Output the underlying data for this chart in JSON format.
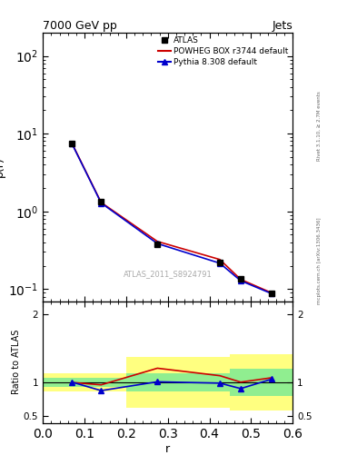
{
  "title": "7000 GeV pp",
  "title_right": "Jets",
  "ylabel_main": "ρ(r)",
  "ylabel_ratio": "Ratio to ATLAS",
  "xlabel": "r",
  "watermark": "ATLAS_2011_S8924791",
  "right_label_top": "Rivet 3.1.10, ≥ 2.7M events",
  "right_label_bottom": "mcplots.cern.ch [arXiv:1306.3436]",
  "atlas_x": [
    0.07,
    0.14,
    0.275,
    0.425,
    0.475,
    0.55
  ],
  "atlas_y": [
    7.5,
    1.35,
    0.38,
    0.22,
    0.135,
    0.089
  ],
  "powheg_x": [
    0.07,
    0.14,
    0.275,
    0.425,
    0.475,
    0.55
  ],
  "powheg_y": [
    7.5,
    1.3,
    0.41,
    0.24,
    0.133,
    0.089
  ],
  "pythia_x": [
    0.07,
    0.14,
    0.275,
    0.425,
    0.475,
    0.55
  ],
  "pythia_y": [
    7.4,
    1.28,
    0.385,
    0.215,
    0.128,
    0.087
  ],
  "ratio_x": [
    0.07,
    0.14,
    0.275,
    0.425,
    0.475,
    0.55
  ],
  "ratio_powheg": [
    1.0,
    0.965,
    1.21,
    1.1,
    1.005,
    1.07
  ],
  "ratio_pythia": [
    1.005,
    0.88,
    1.01,
    0.99,
    0.91,
    1.05
  ],
  "band_x_edges": [
    0.0,
    0.1,
    0.2,
    0.375,
    0.45,
    0.6
  ],
  "green_upper": [
    1.07,
    1.07,
    1.13,
    1.13,
    1.2,
    1.2
  ],
  "green_lower": [
    0.93,
    0.93,
    0.87,
    0.87,
    0.8,
    0.8
  ],
  "yellow_upper": [
    1.13,
    1.13,
    1.38,
    1.38,
    1.42,
    1.42
  ],
  "yellow_lower": [
    0.87,
    0.87,
    0.63,
    0.63,
    0.58,
    0.58
  ],
  "xlim": [
    0.0,
    0.6
  ],
  "ylim_main": [
    0.07,
    200
  ],
  "ylim_ratio": [
    0.4,
    2.2
  ],
  "ratio_yticks": [
    0.5,
    1.0,
    2.0
  ],
  "ratio_yticklabels": [
    "0.5",
    "1",
    "2"
  ],
  "color_atlas": "#000000",
  "color_powheg": "#cc0000",
  "color_pythia": "#0000cc",
  "color_green": "#90ee90",
  "color_yellow": "#ffff80",
  "legend_labels": [
    "ATLAS",
    "POWHEG BOX r3744 default",
    "Pythia 8.308 default"
  ],
  "bg_color": "#ffffff"
}
